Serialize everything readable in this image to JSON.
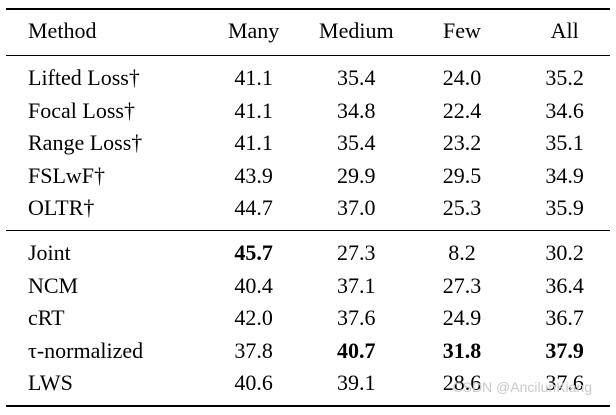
{
  "table": {
    "headers": [
      "Method",
      "Many",
      "Medium",
      "Few",
      "All"
    ],
    "groups": [
      {
        "rows": [
          {
            "method": "Lifted Loss†",
            "values": [
              "41.1",
              "35.4",
              "24.0",
              "35.2"
            ],
            "bold": []
          },
          {
            "method": "Focal Loss†",
            "values": [
              "41.1",
              "34.8",
              "22.4",
              "34.6"
            ],
            "bold": []
          },
          {
            "method": "Range Loss†",
            "values": [
              "41.1",
              "35.4",
              "23.2",
              "35.1"
            ],
            "bold": []
          },
          {
            "method": "FSLwF†",
            "values": [
              "43.9",
              "29.9",
              "29.5",
              "34.9"
            ],
            "bold": []
          },
          {
            "method": "OLTR†",
            "values": [
              "44.7",
              "37.0",
              "25.3",
              "35.9"
            ],
            "bold": []
          }
        ]
      },
      {
        "rows": [
          {
            "method": "Joint",
            "values": [
              "45.7",
              "27.3",
              "8.2",
              "30.2"
            ],
            "bold": [
              0
            ]
          },
          {
            "method": "NCM",
            "values": [
              "40.4",
              "37.1",
              "27.3",
              "36.4"
            ],
            "bold": []
          },
          {
            "method": "cRT",
            "values": [
              "42.0",
              "37.6",
              "24.9",
              "36.7"
            ],
            "bold": []
          },
          {
            "method": "τ-normalized",
            "values": [
              "37.8",
              "40.7",
              "31.8",
              "37.9"
            ],
            "bold": [
              1,
              2,
              3
            ]
          },
          {
            "method": "LWS",
            "values": [
              "40.6",
              "39.1",
              "28.6",
              "37.6"
            ],
            "bold": []
          }
        ]
      }
    ]
  },
  "watermark": "CSDN @AncilunKiang"
}
